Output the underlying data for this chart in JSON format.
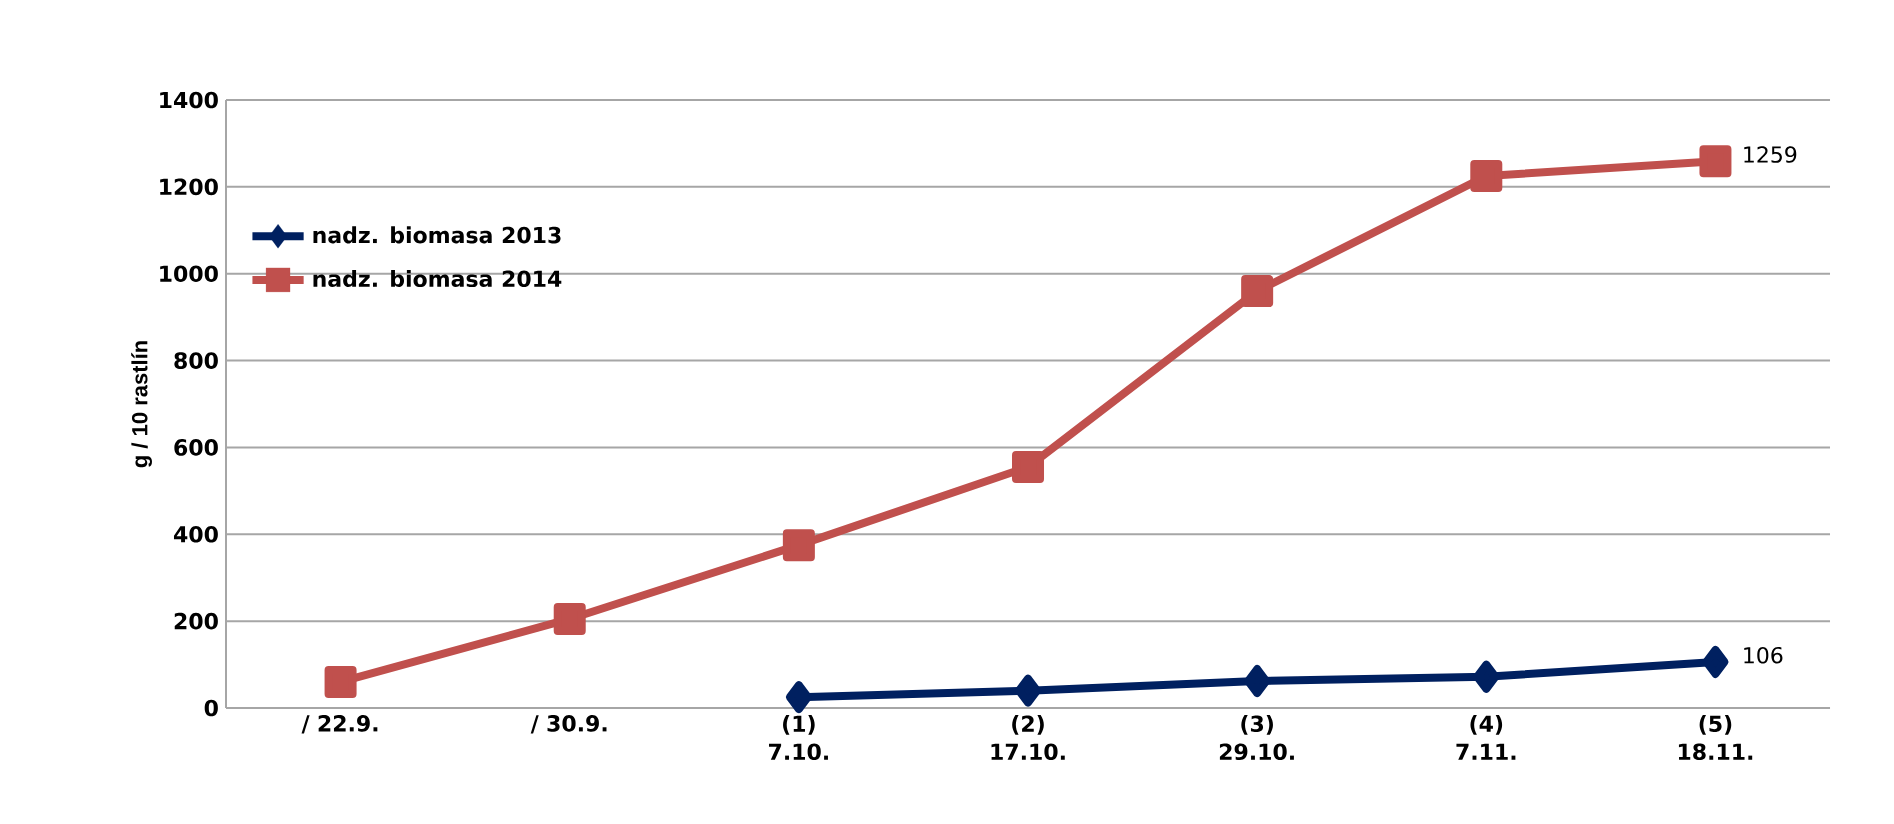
{
  "chart_data": {
    "type": "line",
    "ylabel": "g / 10 rastlín",
    "categories": [
      "/ 22.9.",
      "/ 30.9.",
      "(1) 7.10.",
      "(2) 17.10.",
      "(3) 29.10.",
      "(4) 7.11.",
      "(5) 18.11."
    ],
    "series": [
      {
        "name": "nadz. biomasa 2013",
        "color": "#002060",
        "marker": "diamond",
        "values": [
          null,
          null,
          25,
          40,
          62,
          72,
          106
        ],
        "value_labels": [
          null,
          null,
          null,
          null,
          null,
          null,
          "106"
        ]
      },
      {
        "name": "nadz. biomasa 2014",
        "color": "#c0504d",
        "marker": "square",
        "values": [
          60,
          205,
          375,
          555,
          960,
          1225,
          1259
        ],
        "value_labels": [
          null,
          null,
          null,
          null,
          null,
          null,
          "1259"
        ]
      }
    ],
    "ylim": [
      0,
      1400
    ],
    "yticks": [
      0,
      200,
      400,
      600,
      800,
      1000,
      1200,
      1400
    ],
    "grid": "y",
    "legend": "left",
    "line_style": "solid"
  }
}
